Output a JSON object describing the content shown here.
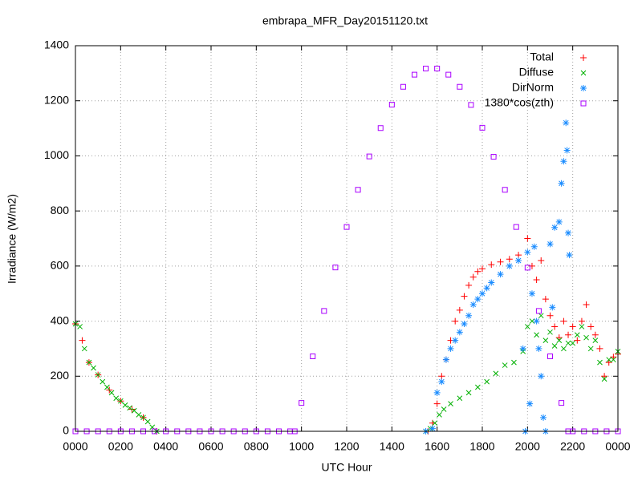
{
  "chart_data": {
    "type": "scatter",
    "title": "embrapa_MFR_Day20151120.txt",
    "x_label": "UTC Hour",
    "y_label": "Irradiance (W/m2)",
    "xlim": [
      0,
      24
    ],
    "ylim": [
      0,
      1400
    ],
    "xticks": [
      {
        "value": 0,
        "label": "0000"
      },
      {
        "value": 2,
        "label": "0200"
      },
      {
        "value": 4,
        "label": "0400"
      },
      {
        "value": 6,
        "label": "0600"
      },
      {
        "value": 8,
        "label": "0800"
      },
      {
        "value": 10,
        "label": "1000"
      },
      {
        "value": 12,
        "label": "1200"
      },
      {
        "value": 14,
        "label": "1400"
      },
      {
        "value": 16,
        "label": "1600"
      },
      {
        "value": 18,
        "label": "1800"
      },
      {
        "value": 20,
        "label": "2000"
      },
      {
        "value": 22,
        "label": "2200"
      },
      {
        "value": 24,
        "label": "0000"
      }
    ],
    "yticks": [
      0,
      200,
      400,
      600,
      800,
      1000,
      1200,
      1400
    ],
    "grid": true,
    "legend": "top-right",
    "series": [
      {
        "name": "Total",
        "color": "#ff0000",
        "marker": "plus",
        "x": [
          0,
          0.3,
          0.6,
          1,
          1.5,
          2,
          2.5,
          3,
          3.6,
          15.6,
          15.8,
          16,
          16.2,
          16.4,
          16.6,
          16.8,
          17,
          17.2,
          17.4,
          17.6,
          17.8,
          18,
          18.4,
          18.8,
          19.2,
          19.6,
          20,
          20.2,
          20.4,
          20.6,
          20.8,
          21,
          21.2,
          21.4,
          21.6,
          21.8,
          22,
          22.2,
          22.4,
          22.6,
          22.8,
          23,
          23.2,
          23.4,
          23.6,
          23.8,
          24
        ],
        "values": [
          390,
          330,
          250,
          205,
          150,
          110,
          80,
          50,
          0,
          0,
          30,
          100,
          200,
          260,
          330,
          400,
          440,
          490,
          530,
          560,
          580,
          590,
          605,
          615,
          625,
          640,
          700,
          600,
          550,
          620,
          480,
          420,
          380,
          340,
          400,
          350,
          380,
          330,
          400,
          460,
          380,
          350,
          300,
          200,
          250,
          270,
          280
        ]
      },
      {
        "name": "Diffuse",
        "color": "#00b000",
        "marker": "cross",
        "x": [
          0,
          0.2,
          0.4,
          0.6,
          0.8,
          1,
          1.2,
          1.4,
          1.6,
          1.8,
          2,
          2.2,
          2.4,
          2.6,
          2.8,
          3,
          3.2,
          3.4,
          3.6,
          15.5,
          15.7,
          15.9,
          16.1,
          16.3,
          16.6,
          17,
          17.4,
          17.8,
          18.2,
          18.6,
          19,
          19.4,
          19.8,
          20,
          20.2,
          20.4,
          20.6,
          20.8,
          21,
          21.2,
          21.4,
          21.6,
          21.8,
          22,
          22.2,
          22.4,
          22.6,
          22.8,
          23,
          23.2,
          23.4,
          23.6,
          23.8,
          24
        ],
        "values": [
          390,
          380,
          300,
          250,
          230,
          205,
          180,
          160,
          140,
          120,
          110,
          95,
          85,
          75,
          60,
          50,
          35,
          15,
          0,
          0,
          10,
          30,
          60,
          80,
          100,
          120,
          140,
          160,
          180,
          210,
          240,
          250,
          290,
          380,
          400,
          350,
          420,
          330,
          360,
          310,
          330,
          300,
          320,
          320,
          350,
          380,
          340,
          300,
          330,
          250,
          190,
          260,
          260,
          290
        ]
      },
      {
        "name": "DirNorm",
        "color": "#1a8cff",
        "marker": "star",
        "x": [
          15.5,
          15.8,
          16,
          16.2,
          16.4,
          16.6,
          16.8,
          17,
          17.2,
          17.4,
          17.6,
          17.8,
          18,
          18.2,
          18.4,
          18.8,
          19.2,
          19.6,
          19.8,
          19.9,
          20,
          20.1,
          20.2,
          20.3,
          20.4,
          20.5,
          20.6,
          20.7,
          20.8,
          21,
          21.1,
          21.2,
          21.4,
          21.5,
          21.6,
          21.7,
          21.75,
          21.8,
          21.85
        ],
        "values": [
          0,
          10,
          140,
          180,
          260,
          300,
          330,
          360,
          390,
          420,
          460,
          480,
          500,
          520,
          540,
          570,
          600,
          620,
          300,
          0,
          650,
          100,
          500,
          670,
          400,
          300,
          200,
          50,
          0,
          680,
          450,
          740,
          760,
          900,
          980,
          1120,
          1020,
          720,
          640
        ]
      },
      {
        "name": "1380*cos(zth)",
        "color": "#aa00ff",
        "marker": "square",
        "x": [
          0,
          0.5,
          1,
          1.5,
          2,
          2.5,
          3,
          3.5,
          4,
          4.5,
          5,
          5.5,
          6,
          6.5,
          7,
          7.5,
          8,
          8.5,
          9,
          9.5,
          9.7,
          10,
          10.5,
          11,
          11.5,
          12,
          12.5,
          13,
          13.5,
          14,
          14.5,
          15,
          15.5,
          16,
          16.5,
          17,
          17.5,
          18,
          18.5,
          19,
          19.5,
          20,
          20.5,
          21,
          21.5,
          21.8,
          22,
          22.5,
          23,
          23.5,
          24
        ],
        "values": [
          0,
          0,
          0,
          0,
          0,
          0,
          0,
          0,
          0,
          0,
          0,
          0,
          0,
          0,
          0,
          0,
          0,
          0,
          0,
          0,
          0,
          103,
          272,
          437,
          595,
          742,
          877,
          998,
          1101,
          1186,
          1251,
          1295,
          1317,
          1317,
          1295,
          1251,
          1185,
          1102,
          997,
          877,
          742,
          594,
          437,
          272,
          103,
          0,
          0,
          0,
          0,
          0,
          0
        ]
      }
    ]
  }
}
